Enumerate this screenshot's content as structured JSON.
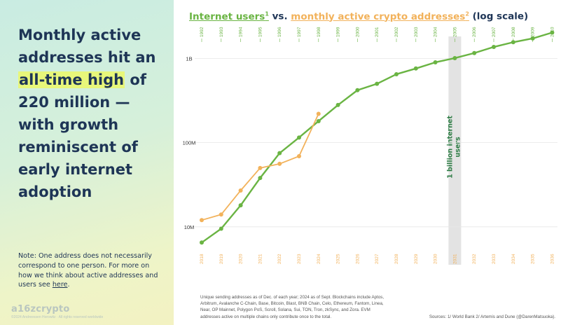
{
  "headline": {
    "before": "Monthly active addresses hit an",
    "highlight": "all-time high",
    "after": "of 220 million — with growth reminiscent of early internet adoption"
  },
  "note": {
    "text": "Note: One address does not necessarily correspond to one person. For more on how we think about active addresses and users see",
    "link": "here",
    "end": "."
  },
  "logo": "a16zcrypto",
  "copyright": "©2024 Andreessen Horowitz · All rights reserved worldwide",
  "title": {
    "part1": "Internet users",
    "sup1": "1",
    "vs": " vs. ",
    "part2": "monthly active crypto addresses",
    "sup2": "2",
    "part3": " (log scale)"
  },
  "footnote": "Unique sending addresses as of Dec. of each year; 2024 as of Sept. Blockchains include Aptos, Arbitrum, Avalanche C-Chain, Base, Bitcoin, Blast, BNB Chain, Celo, Ethereum, Fantom, Linea, Near, OP Mainnet, Polygon PoS, Scroll, Solana, Sui, TON, Tron, zkSync, and Zora. EVM addresses active on multiple chains only contribute once to the total.",
  "sources": "Sources: 1/ World Bank 2/ Artemis and Dune (@DarenMatsuoka).",
  "colors": {
    "internet": "#6ab443",
    "crypto": "#f2b25b",
    "navy": "#1e3556",
    "grid": "#e6e6e6",
    "highlight_band": "#e3e3e3"
  },
  "chart_data": {
    "type": "line",
    "scale": "log",
    "y_ticks": [
      {
        "value": 10000000,
        "label": "10M"
      },
      {
        "value": 100000000,
        "label": "100M"
      },
      {
        "value": 1000000000,
        "label": "1B"
      }
    ],
    "x_top_labels": [
      "1992",
      "1993",
      "1994",
      "1995",
      "1996",
      "1997",
      "1998",
      "1999",
      "2000",
      "2001",
      "2002",
      "2003",
      "2004",
      "2005",
      "2006",
      "2007",
      "2008",
      "2009",
      "2010"
    ],
    "x_bottom_labels": [
      "2018",
      "2019",
      "2020",
      "2021",
      "2022",
      "2023",
      "2024",
      "2025",
      "2026",
      "2027",
      "2028",
      "2029",
      "2030",
      "2031",
      "2032",
      "2033",
      "2034",
      "2035",
      "2036"
    ],
    "annotation": {
      "text": "1 billion internet users",
      "top_label": "2005",
      "bottom_label": "2031"
    },
    "series": [
      {
        "name": "Internet users",
        "axis": "top",
        "color": "#6ab443",
        "values": [
          6500000,
          9500000,
          18000000,
          38000000,
          75000000,
          115000000,
          180000000,
          280000000,
          420000000,
          500000000,
          650000000,
          760000000,
          900000000,
          1010000000,
          1160000000,
          1370000000,
          1560000000,
          1730000000,
          2030000000
        ]
      },
      {
        "name": "Monthly active crypto addresses",
        "axis": "bottom",
        "color": "#f2b25b",
        "values": [
          12000000,
          14000000,
          27000000,
          50000000,
          56000000,
          69000000,
          220000000
        ]
      }
    ]
  }
}
